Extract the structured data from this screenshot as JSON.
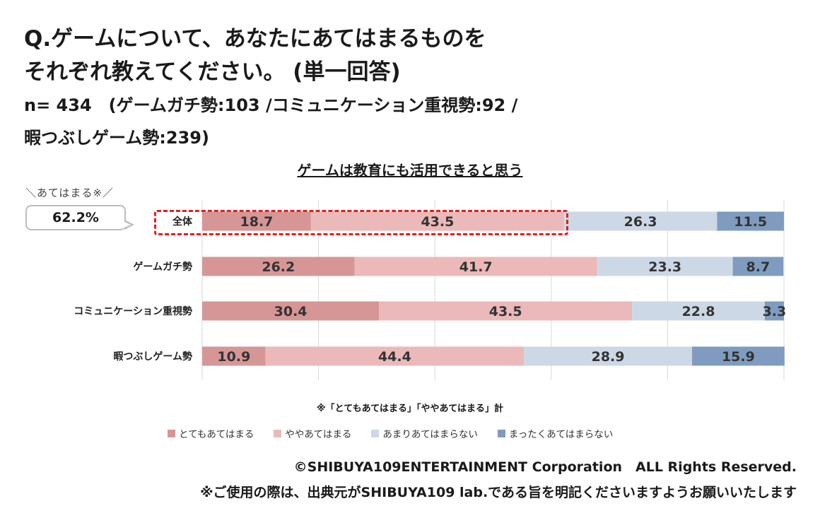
{
  "header": {
    "question": "Q.ゲームについて、あなたにあてはまるものを\nそれぞれ教えてください。 (単一回答)",
    "sample": "n= 434　(ゲームガチ勢:103 /コミュニケーション重視勢:92 /\n暇つぶしゲーム勢:239)"
  },
  "callout": {
    "label": "＼あてはまる※／",
    "value": "62.2%"
  },
  "chart_data": {
    "type": "bar",
    "orientation": "horizontal",
    "stacked": true,
    "percent_stacked": true,
    "title": "ゲームは教育にも活用できると思う",
    "categories": [
      "全体",
      "ゲームガチ勢",
      "コミュニケーション重視勢",
      "暇つぶしゲーム勢"
    ],
    "series": [
      {
        "name": "とてもあてはまる",
        "color": "#d79696",
        "values": [
          18.7,
          26.2,
          30.4,
          10.9
        ]
      },
      {
        "name": "ややあてはまる",
        "color": "#ebb9b9",
        "values": [
          43.5,
          41.7,
          43.5,
          44.4
        ]
      },
      {
        "name": "あまりあてはまらない",
        "color": "#cdd8e6",
        "values": [
          26.3,
          23.3,
          22.8,
          28.9
        ]
      },
      {
        "name": "まったくあてはまらない",
        "color": "#7f9cc0",
        "values": [
          11.5,
          8.7,
          3.3,
          15.9
        ]
      }
    ],
    "xlim": [
      0,
      100
    ],
    "grid": true,
    "legend_position": "bottom"
  },
  "footnote": "※「とてもあてはまる」「ややあてはまる」計",
  "footer": {
    "copyright": "©SHIBUYA109ENTERTAINMENT Corporation　ALL Rights Reserved.",
    "usage_note": "※ご使用の際は、出典元がSHIBUYA109 lab.である旨を明記くださいますようお願いいたします"
  }
}
